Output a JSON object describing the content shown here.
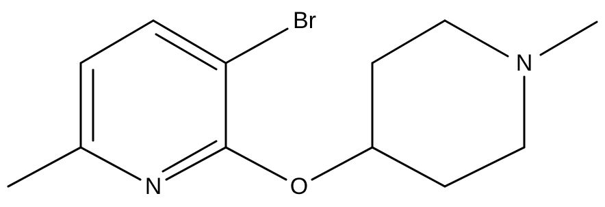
{
  "atoms": {
    "br": "Br",
    "n_pyridine": "N",
    "o": "O",
    "n_piperidine": "N"
  }
}
